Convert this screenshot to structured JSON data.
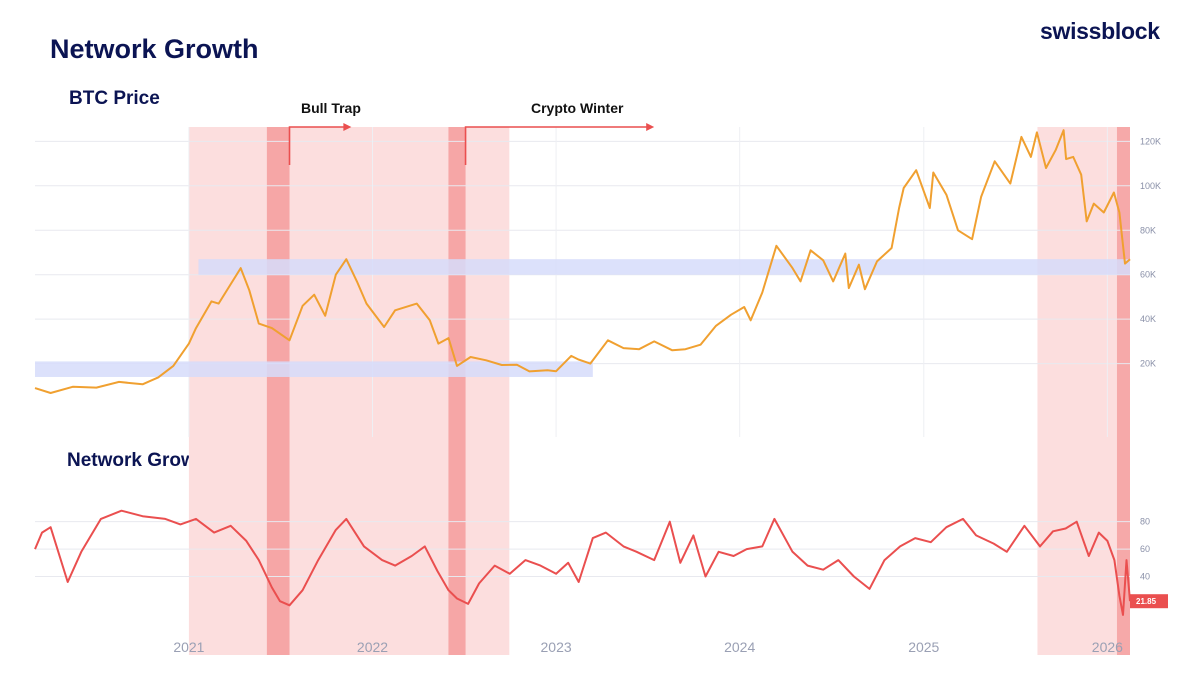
{
  "header": {
    "title": "Network Growth",
    "brand": "swissblock"
  },
  "colors": {
    "price_line": "#f0a030",
    "growth_line": "#ea4f4f",
    "light_band": "#fcdede",
    "dark_band": "#f5a0a0",
    "support_band": "#d6dcfa",
    "text_dark": "#0b1453"
  },
  "chart_data": [
    {
      "type": "line",
      "title": "BTC Price",
      "y_ticks": [
        "20K",
        "40K",
        "60K",
        "80K",
        "100K",
        "120K"
      ],
      "y_tick_values": [
        20000,
        40000,
        60000,
        80000,
        100000,
        120000
      ],
      "ylim": [
        -13000,
        126000
      ],
      "grid": true,
      "series": [
        {
          "x": [
            "2020-03-01",
            "2020-04-01",
            "2020-05-15",
            "2020-07-01",
            "2020-08-15",
            "2020-10-01",
            "2020-11-01",
            "2020-12-01",
            "2021-01-01",
            "2021-01-15",
            "2021-02-15",
            "2021-03-01",
            "2021-04-14",
            "2021-05-01",
            "2021-05-20",
            "2021-06-15",
            "2021-07-20",
            "2021-08-15",
            "2021-09-07",
            "2021-09-29",
            "2021-10-20",
            "2021-11-10",
            "2021-12-01",
            "2021-12-20",
            "2022-01-24",
            "2022-02-15",
            "2022-03-30",
            "2022-04-25",
            "2022-05-12",
            "2022-06-01",
            "2022-06-18",
            "2022-07-15",
            "2022-08-15",
            "2022-09-15",
            "2022-10-15",
            "2022-11-09",
            "2022-12-15",
            "2023-01-01",
            "2023-01-31",
            "2023-02-15",
            "2023-03-10",
            "2023-04-14",
            "2023-05-15",
            "2023-06-15",
            "2023-07-15",
            "2023-08-20",
            "2023-09-15",
            "2023-10-15",
            "2023-11-15",
            "2023-12-15",
            "2024-01-10",
            "2024-01-23",
            "2024-02-15",
            "2024-03-14",
            "2024-04-15",
            "2024-05-01",
            "2024-05-21",
            "2024-06-15",
            "2024-07-05",
            "2024-07-29",
            "2024-08-05",
            "2024-08-25",
            "2024-09-06",
            "2024-09-30",
            "2024-10-29",
            "2024-11-13",
            "2024-11-22",
            "2024-12-17",
            "2025-01-13",
            "2025-01-20",
            "2025-02-15",
            "2025-03-10",
            "2025-04-07",
            "2025-04-25",
            "2025-05-22",
            "2025-06-22",
            "2025-07-14",
            "2025-08-02",
            "2025-08-14",
            "2025-09-01",
            "2025-09-20",
            "2025-10-06",
            "2025-10-11",
            "2025-10-25",
            "2025-11-10",
            "2025-11-21",
            "2025-12-05",
            "2025-12-25",
            "2026-01-14",
            "2026-01-25",
            "2026-02-05",
            "2026-02-15"
          ],
          "y": [
            9000,
            6800,
            9600,
            9200,
            11800,
            10700,
            13800,
            19000,
            29000,
            36000,
            48000,
            47000,
            63000,
            53000,
            38000,
            36000,
            30500,
            46000,
            51000,
            41500,
            60000,
            67000,
            57000,
            47000,
            36500,
            44000,
            47000,
            39500,
            29000,
            31500,
            19000,
            23000,
            21500,
            19400,
            19500,
            16500,
            17000,
            16600,
            23500,
            21800,
            20000,
            30500,
            27000,
            26500,
            30000,
            26000,
            26500,
            28500,
            37000,
            42000,
            45500,
            39500,
            52000,
            73000,
            63000,
            57000,
            71000,
            66500,
            57000,
            69500,
            54000,
            64500,
            53500,
            66000,
            72000,
            90000,
            99000,
            107000,
            90000,
            106000,
            96000,
            80000,
            76000,
            95000,
            111000,
            101000,
            122000,
            113000,
            124000,
            108000,
            116000,
            125000,
            112000,
            113000,
            105000,
            84000,
            92000,
            88000,
            97000,
            88000,
            65000,
            67000
          ]
        }
      ]
    },
    {
      "type": "line",
      "title": "Network Growth",
      "y_ticks": [
        "40",
        "60",
        "80"
      ],
      "y_tick_values": [
        40,
        60,
        80
      ],
      "ylim": [
        1,
        98
      ],
      "grid": true,
      "last_value_label": "21.85",
      "series": [
        {
          "x": [
            "2020-03-01",
            "2020-03-15",
            "2020-04-01",
            "2020-05-05",
            "2020-06-01",
            "2020-07-10",
            "2020-08-20",
            "2020-10-01",
            "2020-11-15",
            "2020-12-15",
            "2021-01-15",
            "2021-02-20",
            "2021-03-25",
            "2021-04-25",
            "2021-05-20",
            "2021-06-15",
            "2021-07-01",
            "2021-07-20",
            "2021-08-15",
            "2021-09-15",
            "2021-10-20",
            "2021-11-10",
            "2021-12-15",
            "2022-01-20",
            "2022-02-15",
            "2022-03-20",
            "2022-04-15",
            "2022-05-10",
            "2022-06-01",
            "2022-06-18",
            "2022-07-10",
            "2022-08-01",
            "2022-09-01",
            "2022-10-01",
            "2022-11-01",
            "2022-12-01",
            "2023-01-01",
            "2023-01-25",
            "2023-02-15",
            "2023-03-15",
            "2023-04-10",
            "2023-05-15",
            "2023-06-10",
            "2023-07-15",
            "2023-08-15",
            "2023-09-05",
            "2023-10-01",
            "2023-10-25",
            "2023-11-20",
            "2023-12-20",
            "2024-01-15",
            "2024-02-15",
            "2024-03-10",
            "2024-04-15",
            "2024-05-15",
            "2024-06-15",
            "2024-07-15",
            "2024-08-15",
            "2024-09-15",
            "2024-10-15",
            "2024-11-15",
            "2024-12-15",
            "2025-01-15",
            "2025-02-15",
            "2025-03-20",
            "2025-04-15",
            "2025-05-20",
            "2025-06-15",
            "2025-07-20",
            "2025-08-20",
            "2025-09-15",
            "2025-10-10",
            "2025-11-01",
            "2025-11-25",
            "2025-12-15",
            "2026-01-01",
            "2026-01-15",
            "2026-01-25",
            "2026-02-01",
            "2026-02-08",
            "2026-02-15"
          ],
          "y": [
            60,
            72,
            76,
            36,
            58,
            82,
            88,
            84,
            82,
            78,
            82,
            72,
            77,
            66,
            52,
            32,
            22,
            19,
            30,
            52,
            74,
            82,
            62,
            52,
            48,
            55,
            62,
            44,
            30,
            24,
            20,
            35,
            48,
            42,
            52,
            48,
            42,
            50,
            36,
            68,
            72,
            62,
            58,
            52,
            80,
            50,
            70,
            40,
            58,
            55,
            60,
            62,
            82,
            58,
            48,
            45,
            52,
            40,
            31,
            52,
            62,
            68,
            65,
            76,
            82,
            70,
            64,
            58,
            77,
            62,
            73,
            75,
            80,
            55,
            72,
            66,
            52,
            26,
            12,
            52,
            22
          ]
        }
      ]
    }
  ],
  "annotations": {
    "bull_trap": "Bull Trap",
    "crypto_winter": "Crypto Winter",
    "price_label": "BTC Price",
    "growth_label": "Network Growth"
  },
  "x_axis": {
    "ticks": [
      "2021",
      "2022",
      "2023",
      "2024",
      "2025",
      "2026"
    ]
  },
  "regions": {
    "light": [
      [
        "2021-01-01",
        "2021-12-31"
      ],
      [
        "2021-10-01",
        "2022-09-30"
      ],
      [
        "2025-08-15",
        "2026-01-20"
      ]
    ],
    "dark": [
      [
        "2021-06-05",
        "2021-07-20"
      ],
      [
        "2022-06-01",
        "2022-07-05"
      ],
      [
        "2026-01-20",
        "2026-02-15"
      ]
    ],
    "support": [
      [
        "2021-01-20",
        "2026-02-15",
        60000,
        67000
      ],
      [
        "2020-03-01",
        "2023-03-15",
        14000,
        21000
      ]
    ],
    "arrows": [
      [
        "2021-07-20",
        "2021-11-20"
      ],
      [
        "2022-07-05",
        "2023-07-15"
      ]
    ]
  }
}
